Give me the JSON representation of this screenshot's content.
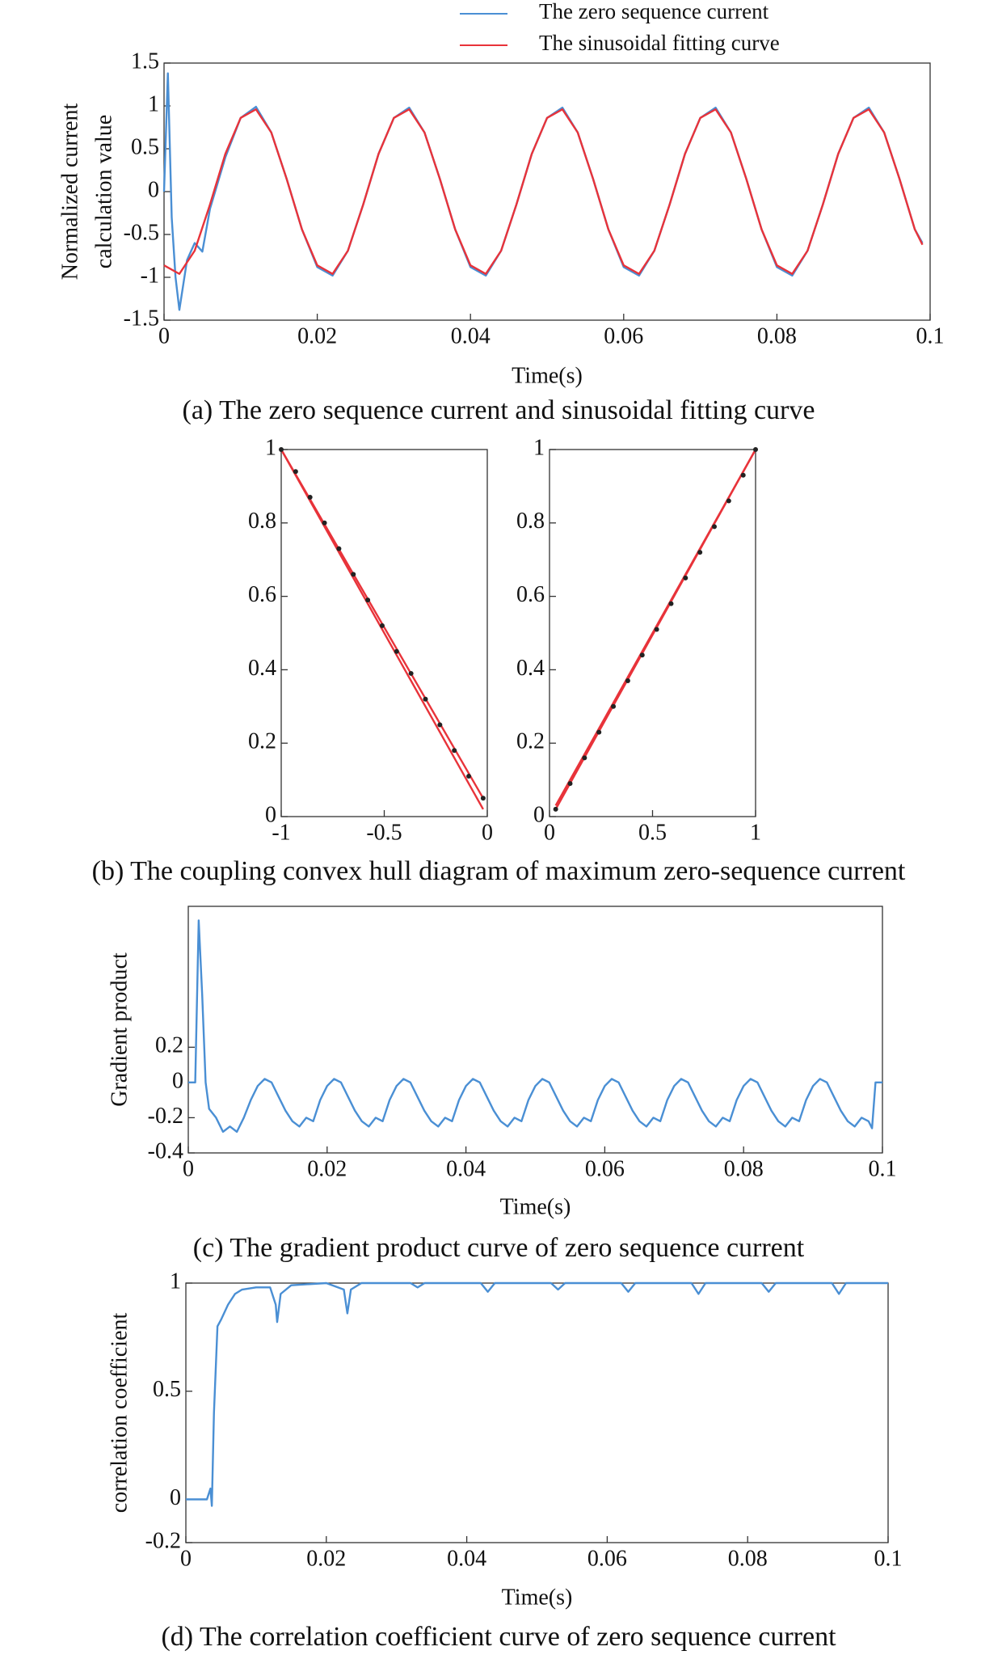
{
  "chart_data": [
    {
      "type": "line",
      "xlabel": "Time(s)",
      "ylabel": [
        "Normalized current",
        "calculation value"
      ],
      "xlim": [
        0,
        0.1
      ],
      "xticks": [
        0,
        0.02,
        0.04,
        0.06,
        0.08,
        0.1
      ],
      "ylim": [
        -1.5,
        1.5
      ],
      "yticks": [
        -1.5,
        -1,
        -0.5,
        0,
        0.5,
        1,
        1.5
      ],
      "legend": "top",
      "series": [
        {
          "name": "The zero sequence current",
          "color": "#4a8fd4",
          "x": [
            0,
            0.0005,
            0.001,
            0.0015,
            0.002,
            0.003,
            0.004,
            0.005,
            0.006,
            0.008,
            0.01,
            0.012,
            0.014,
            0.016,
            0.018,
            0.02,
            0.022,
            0.024,
            0.026,
            0.028,
            0.03,
            0.032,
            0.034,
            0.036,
            0.038,
            0.04,
            0.042,
            0.044,
            0.046,
            0.048,
            0.05,
            0.052,
            0.054,
            0.056,
            0.058,
            0.06,
            0.062,
            0.064,
            0.066,
            0.068,
            0.07,
            0.072,
            0.074,
            0.076,
            0.078,
            0.08,
            0.082,
            0.084,
            0.086,
            0.088,
            0.09,
            0.092,
            0.094,
            0.096,
            0.098,
            0.099
          ],
          "values": [
            0,
            1.38,
            -0.3,
            -1.0,
            -1.38,
            -0.8,
            -0.6,
            -0.7,
            -0.2,
            0.4,
            0.86,
            0.99,
            0.69,
            0.15,
            -0.44,
            -0.88,
            -0.98,
            -0.69,
            -0.15,
            0.44,
            0.86,
            0.98,
            0.69,
            0.15,
            -0.44,
            -0.88,
            -0.98,
            -0.69,
            -0.15,
            0.44,
            0.86,
            0.98,
            0.69,
            0.15,
            -0.44,
            -0.88,
            -0.98,
            -0.69,
            -0.15,
            0.44,
            0.86,
            0.98,
            0.69,
            0.15,
            -0.44,
            -0.88,
            -0.98,
            -0.69,
            -0.15,
            0.44,
            0.86,
            0.98,
            0.69,
            0.15,
            -0.44,
            -0.6
          ]
        },
        {
          "name": "The sinusoidal fitting curve",
          "color": "#e8333a",
          "x": [
            0,
            0.002,
            0.004,
            0.006,
            0.008,
            0.01,
            0.012,
            0.014,
            0.016,
            0.018,
            0.02,
            0.022,
            0.024,
            0.026,
            0.028,
            0.03,
            0.032,
            0.034,
            0.036,
            0.038,
            0.04,
            0.042,
            0.044,
            0.046,
            0.048,
            0.05,
            0.052,
            0.054,
            0.056,
            0.058,
            0.06,
            0.062,
            0.064,
            0.066,
            0.068,
            0.07,
            0.072,
            0.074,
            0.076,
            0.078,
            0.08,
            0.082,
            0.084,
            0.086,
            0.088,
            0.09,
            0.092,
            0.094,
            0.096,
            0.098,
            0.099
          ],
          "values": [
            -0.86,
            -0.96,
            -0.69,
            -0.15,
            0.44,
            0.86,
            0.96,
            0.69,
            0.15,
            -0.44,
            -0.86,
            -0.96,
            -0.69,
            -0.15,
            0.44,
            0.86,
            0.96,
            0.69,
            0.15,
            -0.44,
            -0.86,
            -0.96,
            -0.69,
            -0.15,
            0.44,
            0.86,
            0.96,
            0.69,
            0.15,
            -0.44,
            -0.86,
            -0.96,
            -0.69,
            -0.15,
            0.44,
            0.86,
            0.96,
            0.69,
            0.15,
            -0.44,
            -0.86,
            -0.96,
            -0.69,
            -0.15,
            0.44,
            0.86,
            0.96,
            0.69,
            0.15,
            -0.44,
            -0.62
          ]
        }
      ]
    },
    {
      "type": "line",
      "xlim": [
        -1,
        0
      ],
      "xticks": [
        -1,
        -0.5,
        0
      ],
      "ylim": [
        0,
        1
      ],
      "yticks": [
        0,
        0.2,
        0.4,
        0.6,
        0.8,
        1
      ],
      "series": [
        {
          "color": "#e8333a",
          "x": [
            -1,
            -0.02
          ],
          "values": [
            1,
            0.05
          ]
        },
        {
          "color": "#e8333a",
          "x": [
            -1,
            -0.02
          ],
          "values": [
            1,
            0.02
          ]
        },
        {
          "color": "#222222",
          "marker": "dot",
          "x": [
            -1,
            -0.93,
            -0.86,
            -0.79,
            -0.72,
            -0.65,
            -0.58,
            -0.51,
            -0.44,
            -0.37,
            -0.3,
            -0.23,
            -0.16,
            -0.09,
            -0.02
          ],
          "values": [
            1,
            0.94,
            0.87,
            0.8,
            0.73,
            0.66,
            0.59,
            0.52,
            0.45,
            0.39,
            0.32,
            0.25,
            0.18,
            0.11,
            0.05
          ]
        }
      ]
    },
    {
      "type": "line",
      "xlim": [
        0,
        1
      ],
      "xticks": [
        0,
        0.5,
        1
      ],
      "ylim": [
        0,
        1
      ],
      "yticks": [
        0,
        0.2,
        0.4,
        0.6,
        0.8,
        1
      ],
      "series": [
        {
          "color": "#e8333a",
          "x": [
            0.03,
            1
          ],
          "values": [
            0.02,
            1
          ]
        },
        {
          "color": "#e8333a",
          "x": [
            0.03,
            1
          ],
          "values": [
            0.03,
            1
          ]
        },
        {
          "color": "#222222",
          "marker": "dot",
          "x": [
            0.03,
            0.1,
            0.17,
            0.24,
            0.31,
            0.38,
            0.45,
            0.52,
            0.59,
            0.66,
            0.73,
            0.8,
            0.87,
            0.94,
            1
          ],
          "values": [
            0.02,
            0.09,
            0.16,
            0.23,
            0.3,
            0.37,
            0.44,
            0.51,
            0.58,
            0.65,
            0.72,
            0.79,
            0.86,
            0.93,
            1
          ]
        }
      ]
    },
    {
      "type": "line",
      "xlabel": "Time(s)",
      "ylabel": [
        "Gradient  product"
      ],
      "xlim": [
        0,
        0.1
      ],
      "xticks": [
        0,
        0.02,
        0.04,
        0.06,
        0.08,
        0.1
      ],
      "ylim": [
        -0.4,
        1
      ],
      "yticks": [
        -0.4,
        -0.2,
        0,
        0.2
      ],
      "series": [
        {
          "color": "#4a8fd4",
          "x": [
            0,
            0.001,
            0.0015,
            0.002,
            0.0025,
            0.003,
            0.004,
            0.005,
            0.006,
            0.007,
            0.008,
            0.009,
            0.01,
            0.011,
            0.012,
            0.013,
            0.014,
            0.015,
            0.016,
            0.017,
            0.018,
            0.019,
            0.02,
            0.021,
            0.022,
            0.023,
            0.024,
            0.025,
            0.026,
            0.027,
            0.028,
            0.029,
            0.03,
            0.031,
            0.032,
            0.033,
            0.034,
            0.035,
            0.036,
            0.037,
            0.038,
            0.039,
            0.04,
            0.041,
            0.042,
            0.043,
            0.044,
            0.045,
            0.046,
            0.047,
            0.048,
            0.049,
            0.05,
            0.051,
            0.052,
            0.053,
            0.054,
            0.055,
            0.056,
            0.057,
            0.058,
            0.059,
            0.06,
            0.061,
            0.062,
            0.063,
            0.064,
            0.065,
            0.066,
            0.067,
            0.068,
            0.069,
            0.07,
            0.071,
            0.072,
            0.073,
            0.074,
            0.075,
            0.076,
            0.077,
            0.078,
            0.079,
            0.08,
            0.081,
            0.082,
            0.083,
            0.084,
            0.085,
            0.086,
            0.087,
            0.088,
            0.089,
            0.09,
            0.091,
            0.092,
            0.093,
            0.094,
            0.095,
            0.096,
            0.097,
            0.098,
            0.0985,
            0.099,
            0.1
          ],
          "values": [
            0,
            0,
            0.92,
            0.5,
            0,
            -0.15,
            -0.2,
            -0.28,
            -0.25,
            -0.28,
            -0.2,
            -0.1,
            -0.02,
            0.02,
            0,
            -0.08,
            -0.16,
            -0.22,
            -0.25,
            -0.2,
            -0.22,
            -0.1,
            -0.02,
            0.02,
            0,
            -0.08,
            -0.16,
            -0.22,
            -0.25,
            -0.2,
            -0.22,
            -0.1,
            -0.02,
            0.02,
            0,
            -0.08,
            -0.16,
            -0.22,
            -0.25,
            -0.2,
            -0.22,
            -0.1,
            -0.02,
            0.02,
            0,
            -0.08,
            -0.16,
            -0.22,
            -0.25,
            -0.2,
            -0.22,
            -0.1,
            -0.02,
            0.02,
            0,
            -0.08,
            -0.16,
            -0.22,
            -0.25,
            -0.2,
            -0.22,
            -0.1,
            -0.02,
            0.02,
            0,
            -0.08,
            -0.16,
            -0.22,
            -0.25,
            -0.2,
            -0.22,
            -0.1,
            -0.02,
            0.02,
            0,
            -0.08,
            -0.16,
            -0.22,
            -0.25,
            -0.2,
            -0.22,
            -0.1,
            -0.02,
            0.02,
            0,
            -0.08,
            -0.16,
            -0.22,
            -0.25,
            -0.2,
            -0.22,
            -0.1,
            -0.02,
            0.02,
            0,
            -0.08,
            -0.16,
            -0.22,
            -0.25,
            -0.2,
            -0.22,
            -0.26,
            0,
            0
          ]
        }
      ]
    },
    {
      "type": "line",
      "xlabel": "Time(s)",
      "ylabel": [
        "correlation  coefficient"
      ],
      "xlim": [
        0,
        0.1
      ],
      "xticks": [
        0,
        0.02,
        0.04,
        0.06,
        0.08,
        0.1
      ],
      "ylim": [
        -0.2,
        1
      ],
      "yticks": [
        -0.2,
        0,
        0.5,
        1
      ],
      "series": [
        {
          "color": "#4a8fd4",
          "x": [
            0,
            0.003,
            0.0035,
            0.0037,
            0.004,
            0.0045,
            0.005,
            0.006,
            0.007,
            0.008,
            0.01,
            0.012,
            0.0128,
            0.013,
            0.0135,
            0.015,
            0.02,
            0.0225,
            0.023,
            0.0235,
            0.025,
            0.032,
            0.033,
            0.034,
            0.042,
            0.043,
            0.044,
            0.052,
            0.053,
            0.054,
            0.062,
            0.063,
            0.064,
            0.072,
            0.073,
            0.074,
            0.082,
            0.083,
            0.084,
            0.092,
            0.093,
            0.094,
            0.1
          ],
          "values": [
            0,
            0,
            0.05,
            -0.03,
            0.4,
            0.8,
            0.83,
            0.9,
            0.95,
            0.97,
            0.98,
            0.98,
            0.9,
            0.82,
            0.95,
            0.99,
            1,
            0.97,
            0.86,
            0.97,
            1,
            1,
            0.98,
            1,
            1,
            0.96,
            1,
            1,
            0.97,
            1,
            1,
            0.96,
            1,
            1,
            0.95,
            1,
            1,
            0.96,
            1,
            1,
            0.95,
            1,
            1
          ]
        }
      ]
    }
  ],
  "captions": [
    "(a) The zero sequence current and sinusoidal fitting curve",
    "(b) The coupling convex hull diagram of maximum zero-sequence current",
    "(c) The gradient product curve of zero sequence current",
    "(d) The correlation coefficient curve of zero sequence current"
  ]
}
